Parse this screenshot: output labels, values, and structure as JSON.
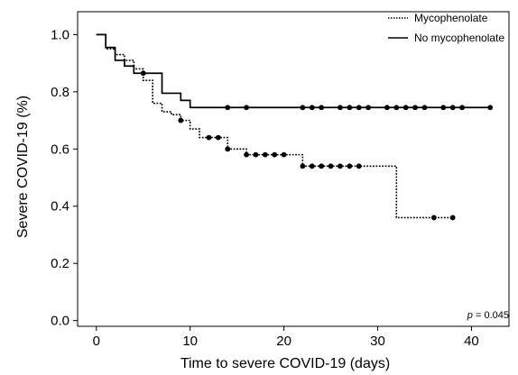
{
  "chart_data": {
    "type": "line",
    "xlabel": "Time to severe COVID-19 (days)",
    "ylabel": "Severe COVID-19 (%)",
    "xlim": [
      -2,
      44
    ],
    "ylim": [
      -0.02,
      1.08
    ],
    "x_ticks": [
      0,
      10,
      20,
      30,
      40
    ],
    "x_tick_labels": [
      "0",
      "10",
      "20",
      "30",
      "40"
    ],
    "y_ticks": [
      0.0,
      0.2,
      0.4,
      0.6,
      0.8,
      1.0
    ],
    "y_tick_labels": [
      "0.0",
      "0.2",
      "0.4",
      "0.6",
      "0.8",
      "1.0"
    ],
    "legend_position": "top-right",
    "annotation": {
      "italic": "p",
      "rest": " = 0.045"
    },
    "series": [
      {
        "name": "Mycophenolate",
        "style": "dotted",
        "step": {
          "x": [
            0,
            1,
            2,
            3,
            4,
            5,
            6,
            7,
            8,
            9,
            10,
            11,
            12,
            14,
            16,
            21,
            22,
            32,
            38
          ],
          "y": [
            1.0,
            0.95,
            0.93,
            0.91,
            0.88,
            0.84,
            0.76,
            0.73,
            0.72,
            0.7,
            0.67,
            0.64,
            0.64,
            0.6,
            0.58,
            0.58,
            0.54,
            0.36,
            0.36
          ]
        },
        "censored": {
          "x": [
            9,
            12,
            13,
            14,
            16,
            17,
            18,
            19,
            20,
            22,
            23,
            24,
            25,
            26,
            27,
            28,
            36,
            38
          ],
          "y": [
            0.7,
            0.64,
            0.64,
            0.6,
            0.58,
            0.58,
            0.58,
            0.58,
            0.58,
            0.54,
            0.54,
            0.54,
            0.54,
            0.54,
            0.54,
            0.54,
            0.36,
            0.36
          ]
        }
      },
      {
        "name": "No mycophenolate",
        "style": "solid",
        "step": {
          "x": [
            0,
            1,
            2,
            3,
            4,
            5,
            7,
            9,
            10,
            42
          ],
          "y": [
            1.0,
            0.955,
            0.91,
            0.89,
            0.865,
            0.865,
            0.795,
            0.77,
            0.745,
            0.745
          ]
        },
        "censored": {
          "x": [
            5,
            14,
            16,
            22,
            23,
            24,
            26,
            27,
            28,
            29,
            31,
            32,
            33,
            34,
            35,
            37,
            38,
            39,
            42
          ],
          "y": [
            0.865,
            0.745,
            0.745,
            0.745,
            0.745,
            0.745,
            0.745,
            0.745,
            0.745,
            0.745,
            0.745,
            0.745,
            0.745,
            0.745,
            0.745,
            0.745,
            0.745,
            0.745,
            0.745
          ]
        }
      }
    ]
  }
}
